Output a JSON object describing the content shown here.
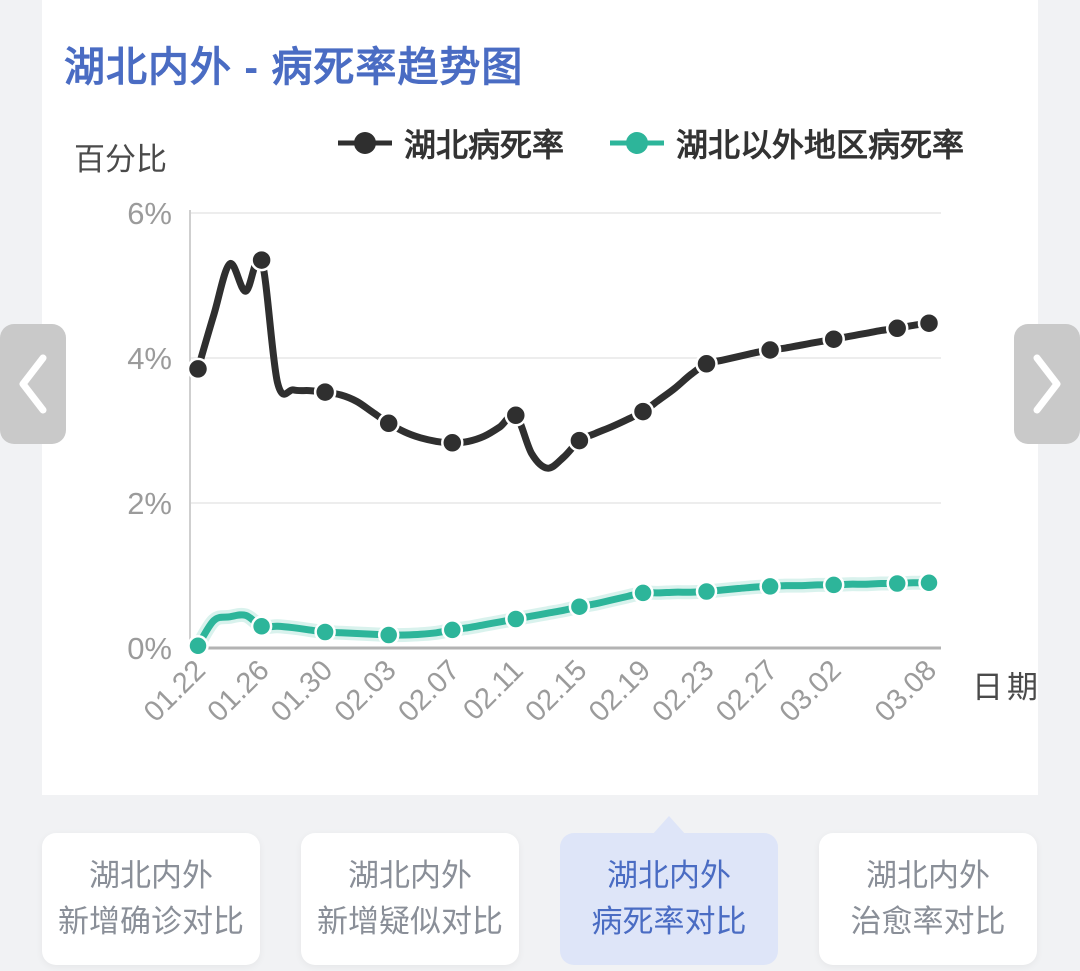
{
  "page": {
    "title": "湖北内外 - 病死率趋势图"
  },
  "colors": {
    "accent_blue": "#4a6cc3",
    "hubei_series": "#2f2f2f",
    "outside_series": "#2db59a",
    "active_tab_bg": "#dee5f8",
    "tick_gray": "#9b9b9b"
  },
  "icons": {
    "prev": "chevron-left",
    "next": "chevron-right"
  },
  "chart_data": {
    "type": "line",
    "title": "湖北内外 - 病死率趋势图",
    "y_axis_name": "百分比",
    "x_axis_name": "日期",
    "ylim": [
      0,
      6
    ],
    "y_tick_labels": [
      "0%",
      "2%",
      "4%",
      "6%"
    ],
    "y_tick_values": [
      0,
      2,
      4,
      6
    ],
    "grid": true,
    "legend_position": "top",
    "x": [
      "01.22",
      "01.23",
      "01.24",
      "01.25",
      "01.26",
      "01.27",
      "01.28",
      "01.29",
      "01.30",
      "01.31",
      "02.01",
      "02.02",
      "02.03",
      "02.04",
      "02.05",
      "02.06",
      "02.07",
      "02.08",
      "02.09",
      "02.10",
      "02.11",
      "02.12",
      "02.13",
      "02.14",
      "02.15",
      "02.16",
      "02.17",
      "02.18",
      "02.19",
      "02.20",
      "02.21",
      "02.22",
      "02.23",
      "02.24",
      "02.25",
      "02.26",
      "02.27",
      "02.28",
      "02.29",
      "03.01",
      "03.02",
      "03.03",
      "03.04",
      "03.05",
      "03.06",
      "03.07",
      "03.08"
    ],
    "tick_indices": [
      0,
      4,
      8,
      12,
      16,
      20,
      24,
      28,
      32,
      36,
      40,
      46
    ],
    "tick_labels": [
      "01.22",
      "01.26",
      "01.30",
      "02.03",
      "02.07",
      "02.11",
      "02.15",
      "02.19",
      "02.23",
      "02.27",
      "03.02",
      "03.08"
    ],
    "marker_interval": 4,
    "series": [
      {
        "name": "湖北病死率",
        "color": "#2f2f2f",
        "glow": false,
        "values": [
          3.85,
          4.6,
          5.3,
          4.92,
          5.35,
          3.66,
          3.56,
          3.55,
          3.53,
          3.49,
          3.4,
          3.25,
          3.1,
          2.98,
          2.9,
          2.85,
          2.83,
          2.85,
          2.92,
          3.05,
          3.21,
          2.68,
          2.48,
          2.63,
          2.86,
          2.96,
          3.05,
          3.15,
          3.26,
          3.42,
          3.58,
          3.77,
          3.92,
          3.97,
          4.02,
          4.07,
          4.11,
          4.14,
          4.18,
          4.22,
          4.26,
          4.3,
          4.34,
          4.38,
          4.41,
          4.45,
          4.48
        ]
      },
      {
        "name": "湖北以外地区病死率",
        "color": "#2db59a",
        "glow": true,
        "values": [
          0.03,
          0.38,
          0.43,
          0.45,
          0.3,
          0.3,
          0.28,
          0.25,
          0.22,
          0.21,
          0.2,
          0.19,
          0.18,
          0.18,
          0.19,
          0.21,
          0.25,
          0.28,
          0.32,
          0.36,
          0.4,
          0.44,
          0.48,
          0.52,
          0.57,
          0.61,
          0.66,
          0.71,
          0.76,
          0.76,
          0.77,
          0.77,
          0.78,
          0.8,
          0.82,
          0.84,
          0.85,
          0.86,
          0.86,
          0.87,
          0.87,
          0.88,
          0.88,
          0.89,
          0.89,
          0.9,
          0.9
        ]
      }
    ]
  },
  "footer": {
    "tabs": [
      {
        "line1": "湖北内外",
        "line2": "新增确诊对比",
        "active": false
      },
      {
        "line1": "湖北内外",
        "line2": "新增疑似对比",
        "active": false
      },
      {
        "line1": "湖北内外",
        "line2": "病死率对比",
        "active": true
      },
      {
        "line1": "湖北内外",
        "line2": "治愈率对比",
        "active": false
      }
    ]
  }
}
